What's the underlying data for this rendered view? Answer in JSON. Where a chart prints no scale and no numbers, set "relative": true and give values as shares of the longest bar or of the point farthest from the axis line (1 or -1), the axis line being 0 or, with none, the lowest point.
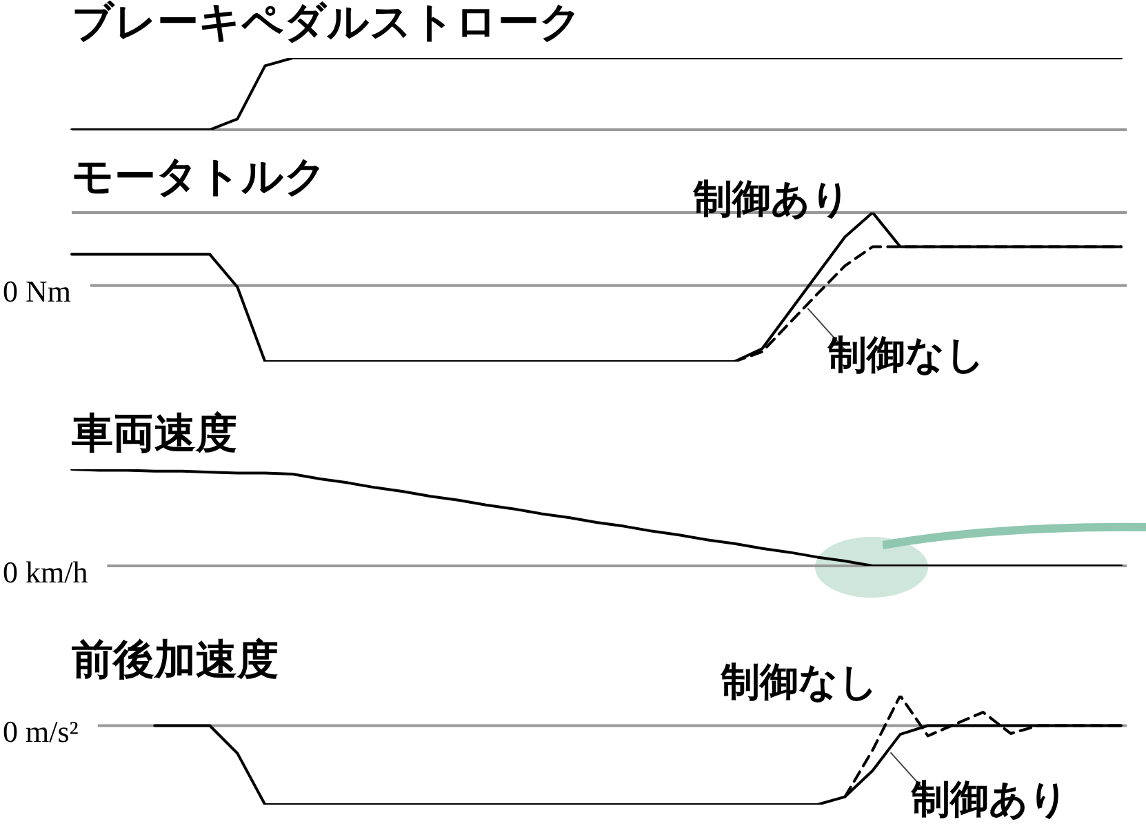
{
  "chart_data": [
    {
      "type": "line",
      "title": "ブレーキペダルストローク",
      "relative": true,
      "tick_labels": false,
      "marker": "none",
      "categories": [
        null,
        null,
        null,
        null,
        null,
        null,
        null,
        null,
        null,
        null,
        null,
        null,
        null,
        null,
        null,
        null,
        null,
        null,
        null,
        null,
        null,
        null,
        null,
        null,
        null,
        null,
        null,
        null,
        null,
        null,
        null,
        null,
        null,
        null,
        null,
        null,
        null,
        null,
        null
      ],
      "series": [
        {
          "color": "#000000",
          "values": [
            0,
            0,
            0,
            0,
            0,
            0,
            0.15,
            0.89,
            1,
            1,
            1,
            1,
            1,
            1,
            1,
            1,
            1,
            1,
            1,
            1,
            1,
            1,
            1,
            1,
            1,
            1,
            1,
            1,
            1,
            1,
            1,
            1,
            1,
            1,
            1,
            1,
            1,
            1,
            1
          ]
        }
      ],
      "ref_lines": [
        {
          "axis": "y",
          "value": 0,
          "color": "#999999"
        }
      ]
    },
    {
      "type": "line",
      "title": "モータトルク",
      "relative": true,
      "tick_labels": false,
      "marker": "none",
      "categories": [
        null,
        null,
        null,
        null,
        null,
        null,
        null,
        null,
        null,
        null,
        null,
        null,
        null,
        null,
        null,
        null,
        null,
        null,
        null,
        null,
        null,
        null,
        null,
        null,
        null,
        null,
        null,
        null,
        null,
        null,
        null,
        null,
        null,
        null,
        null,
        null,
        null,
        null,
        null
      ],
      "series": [
        {
          "name": "制御あり",
          "color": "#000000",
          "line_style": "solid",
          "values": [
            0.41,
            0.41,
            0.41,
            0.41,
            0.41,
            0.41,
            -0.02,
            -1,
            -1,
            -1,
            -1,
            -1,
            -1,
            -1,
            -1,
            -1,
            -1,
            -1,
            -1,
            -1,
            -1,
            -1,
            -1,
            -1,
            -1,
            -0.83,
            -0.34,
            0.15,
            0.64,
            0.96,
            0.51,
            0.51,
            0.51,
            0.51,
            0.51,
            0.51,
            0.51,
            0.51,
            0.51
          ]
        },
        {
          "name": "制御なし",
          "color": "#000000",
          "line_style": "dashed",
          "values": [
            null,
            null,
            null,
            null,
            null,
            null,
            null,
            null,
            null,
            null,
            null,
            null,
            null,
            null,
            null,
            null,
            null,
            null,
            null,
            null,
            null,
            null,
            null,
            null,
            -1,
            -0.87,
            -0.49,
            -0.11,
            0.26,
            0.51,
            0.51,
            0.51,
            0.51,
            0.51,
            0.51,
            0.51,
            0.51,
            0.51,
            0.51
          ]
        }
      ],
      "ref_lines": [
        {
          "axis": "y",
          "value": 0,
          "label": "0 Nm",
          "color": "#999999"
        },
        {
          "axis": "y",
          "value": 0.96,
          "color": "#999999"
        }
      ]
    },
    {
      "type": "line",
      "title": "車両速度",
      "relative": true,
      "tick_labels": false,
      "marker": "none",
      "categories": [
        null,
        null,
        null,
        null,
        null,
        null,
        null,
        null,
        null,
        null,
        null,
        null,
        null,
        null,
        null,
        null,
        null,
        null,
        null,
        null,
        null,
        null,
        null,
        null,
        null,
        null,
        null,
        null,
        null,
        null,
        null,
        null,
        null,
        null,
        null,
        null,
        null,
        null,
        null
      ],
      "series": [
        {
          "color": "#000000",
          "values": [
            1,
            0.99,
            0.99,
            0.98,
            0.98,
            0.97,
            0.96,
            0.96,
            0.95,
            0.9,
            0.86,
            0.81,
            0.77,
            0.72,
            0.68,
            0.63,
            0.59,
            0.54,
            0.5,
            0.45,
            0.41,
            0.36,
            0.32,
            0.27,
            0.23,
            0.18,
            0.14,
            0.09,
            0.05,
            0,
            0,
            0,
            0,
            0,
            0,
            0,
            0,
            0,
            0
          ]
        }
      ],
      "ref_lines": [
        {
          "axis": "y",
          "value": 0,
          "label": "0 km/h",
          "color": "#999999"
        }
      ]
    },
    {
      "type": "line",
      "title": "前後加速度",
      "relative": true,
      "tick_labels": false,
      "marker": "none",
      "categories": [
        null,
        null,
        null,
        null,
        null,
        null,
        null,
        null,
        null,
        null,
        null,
        null,
        null,
        null,
        null,
        null,
        null,
        null,
        null,
        null,
        null,
        null,
        null,
        null,
        null,
        null,
        null,
        null,
        null,
        null,
        null,
        null,
        null,
        null,
        null,
        null,
        null,
        null,
        null
      ],
      "series": [
        {
          "name": "制御なし",
          "color": "#000000",
          "line_style": "dashed",
          "values": [
            null,
            null,
            null,
            null,
            null,
            null,
            null,
            null,
            null,
            null,
            null,
            null,
            null,
            null,
            null,
            null,
            null,
            null,
            null,
            null,
            null,
            null,
            null,
            null,
            null,
            null,
            null,
            null,
            -0.9,
            -0.31,
            0.38,
            -0.13,
            0.02,
            0.17,
            -0.1,
            0,
            0,
            0,
            0
          ]
        },
        {
          "name": "制御あり",
          "color": "#000000",
          "line_style": "solid",
          "values": [
            null,
            null,
            null,
            0,
            0,
            0,
            -0.35,
            -1,
            -1,
            -1,
            -1,
            -1,
            -1,
            -1,
            -1,
            -1,
            -1,
            -1,
            -1,
            -1,
            -1,
            -1,
            -1,
            -1,
            -1,
            -1,
            -1,
            -1,
            -0.9,
            -0.57,
            -0.11,
            0,
            0,
            0,
            0,
            0,
            0,
            0,
            0
          ]
        }
      ],
      "ref_lines": [
        {
          "axis": "y",
          "value": 0,
          "label": "0 m/s²",
          "color": "#999999"
        }
      ]
    }
  ]
}
